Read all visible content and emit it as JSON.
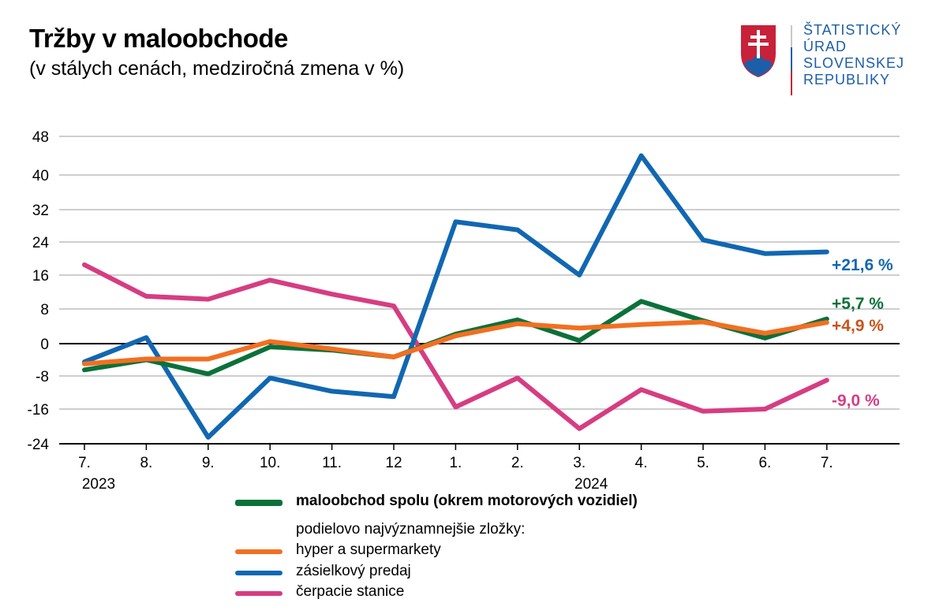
{
  "header": {
    "title": "Tržby v maloobchode",
    "subtitle": "(v stálych cenách, medziročná zmena v %)"
  },
  "logo": {
    "lines": [
      "ŠTATISTICKÝ",
      "ÚRAD",
      "SLOVENSKEJ",
      "REPUBLIKY"
    ],
    "colors": {
      "red": "#c8213a",
      "blue": "#1d5ea8",
      "white": "#ffffff"
    }
  },
  "chart_data": {
    "type": "line",
    "title": "Tržby v maloobchode",
    "subtitle": "(v stálych cenách, medziročná zmena v %)",
    "categories": [
      "7.",
      "8.",
      "9.",
      "10.",
      "11.",
      "12",
      "1.",
      "2.",
      "3.",
      "4.",
      "5.",
      "6.",
      "7."
    ],
    "year_labels": [
      {
        "index": 0,
        "label": "2023"
      },
      {
        "index": 8,
        "label": "2024"
      }
    ],
    "yticks": [
      48,
      40,
      32,
      24,
      16,
      8,
      0,
      -8,
      -16,
      -24
    ],
    "ytick_labels": [
      "48",
      "40",
      "32",
      "24",
      "16",
      "8",
      "0",
      "-8",
      "-16",
      "-24"
    ],
    "ylim": [
      -24,
      48
    ],
    "grid": true,
    "legend_placement": "bottom",
    "legend_subheading": "podielovo najvýznamnejšie zložky:",
    "series": [
      {
        "name": "maloobchod spolu (okrem motorových vozidiel)",
        "color": "#0b7139",
        "bold": true,
        "values": [
          -6.5,
          -4.0,
          -7.5,
          -0.8,
          -1.6,
          -3.3,
          2.2,
          5.5,
          0.7,
          9.8,
          5.3,
          1.3,
          5.7
        ],
        "end_label": "+5,7 %",
        "end_label_color": "#0b7139"
      },
      {
        "name": "hyper a supermarkety",
        "color": "#f26f21",
        "bold": false,
        "values": [
          -5.0,
          -3.8,
          -3.8,
          0.5,
          -1.3,
          -3.3,
          1.8,
          4.6,
          3.6,
          4.4,
          5.0,
          2.4,
          4.9
        ],
        "end_label": "+4,9 %",
        "end_label_color": "#c9541d"
      },
      {
        "name": "zásielkový predaj",
        "color": "#1167b1",
        "bold": false,
        "values": [
          -4.5,
          1.4,
          -22.5,
          -8.5,
          -11.7,
          -13.0,
          29.0,
          27.0,
          16.0,
          44.0,
          24.5,
          21.2,
          21.6
        ],
        "end_label": "+21,6 %",
        "end_label_color": "#1167b1"
      },
      {
        "name": "čerpacie stanice",
        "color": "#d63d82",
        "bold": false,
        "values": [
          18.5,
          11.0,
          10.3,
          14.8,
          11.5,
          8.7,
          -15.5,
          -8.5,
          -20.5,
          -11.3,
          -16.5,
          -16.0,
          -9.0
        ],
        "end_label": "-9,0 %",
        "end_label_color": "#d63d82"
      }
    ]
  }
}
